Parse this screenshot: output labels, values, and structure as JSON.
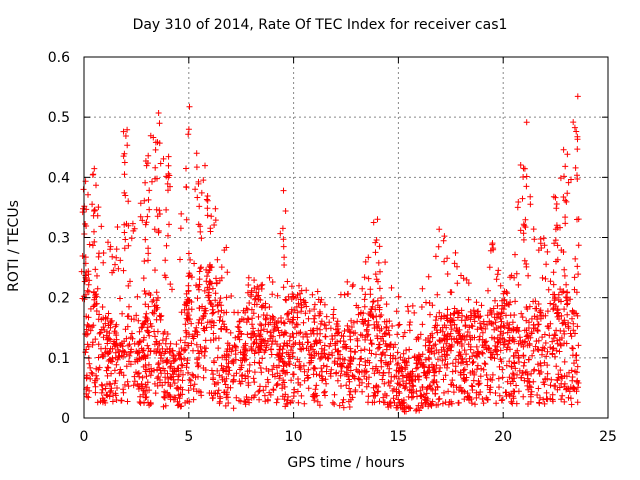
{
  "chart_data": {
    "type": "scatter",
    "title": "Day 310 of 2014, Rate Of TEC Index for receiver cas1",
    "xlabel": "GPS time / hours",
    "ylabel": "ROTI / TECUs",
    "xlim": [
      0,
      25
    ],
    "ylim": [
      0,
      0.6
    ],
    "xticks": [
      0,
      5,
      10,
      15,
      20,
      25
    ],
    "yticks": [
      0,
      0.1,
      0.2,
      0.3,
      0.4,
      0.5,
      0.6
    ],
    "xtick_labels": [
      "0",
      "5",
      "10",
      "15",
      "20",
      "25"
    ],
    "ytick_labels": [
      "0",
      "0.1",
      "0.2",
      "0.3",
      "0.4",
      "0.5",
      "0.6"
    ],
    "grid": true,
    "marker": "+",
    "color": "#ff0000",
    "envelope": {
      "hours": [
        0,
        0.5,
        1,
        1.5,
        2,
        2.5,
        3,
        3.5,
        4,
        4.5,
        5,
        5.5,
        6,
        6.5,
        7,
        7.5,
        8,
        8.5,
        9,
        9.5,
        10,
        10.5,
        11,
        11.5,
        12,
        12.5,
        13,
        13.5,
        14,
        14.5,
        15,
        15.5,
        16,
        16.5,
        17,
        17.5,
        18,
        18.5,
        19,
        19.5,
        20,
        20.5,
        21,
        21.5,
        22,
        22.5,
        23,
        23.5
      ],
      "typical": [
        0.15,
        0.12,
        0.1,
        0.09,
        0.11,
        0.09,
        0.1,
        0.12,
        0.07,
        0.06,
        0.13,
        0.14,
        0.15,
        0.12,
        0.06,
        0.1,
        0.12,
        0.11,
        0.1,
        0.09,
        0.12,
        0.11,
        0.1,
        0.1,
        0.09,
        0.08,
        0.1,
        0.12,
        0.12,
        0.08,
        0.06,
        0.05,
        0.06,
        0.08,
        0.1,
        0.11,
        0.09,
        0.1,
        0.1,
        0.11,
        0.12,
        0.1,
        0.1,
        0.11,
        0.1,
        0.12,
        0.12,
        0.1
      ],
      "peak": [
        0.39,
        0.43,
        0.3,
        0.28,
        0.48,
        0.3,
        0.45,
        0.51,
        0.44,
        0.3,
        0.54,
        0.43,
        0.42,
        0.3,
        0.29,
        0.24,
        0.24,
        0.23,
        0.24,
        0.4,
        0.22,
        0.22,
        0.22,
        0.2,
        0.2,
        0.22,
        0.27,
        0.27,
        0.37,
        0.25,
        0.21,
        0.19,
        0.2,
        0.26,
        0.33,
        0.3,
        0.26,
        0.23,
        0.26,
        0.3,
        0.21,
        0.27,
        0.5,
        0.3,
        0.3,
        0.37,
        0.48,
        0.54
      ]
    }
  }
}
